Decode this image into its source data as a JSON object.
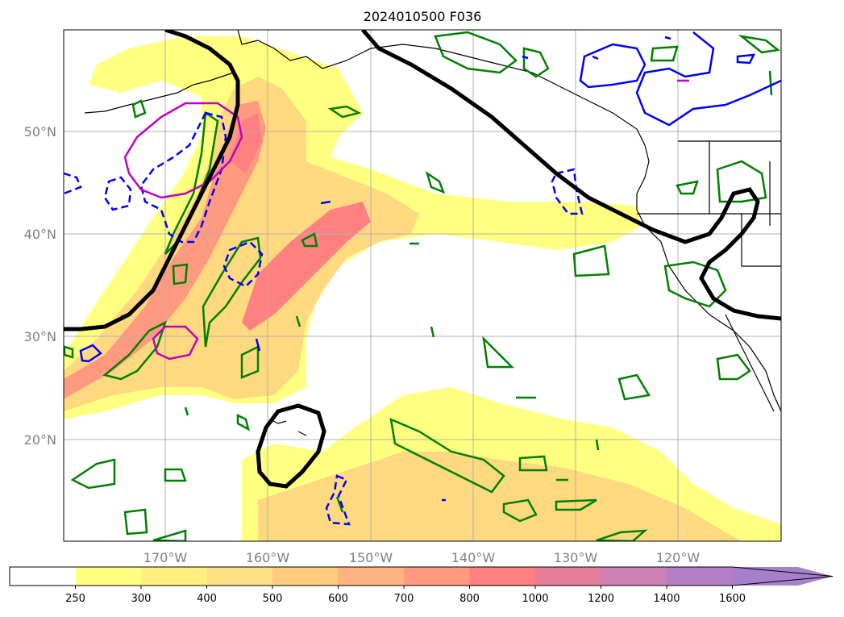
{
  "title": "2024010500 F036",
  "latitude_labels": [
    "50°N",
    "40°N",
    "30°N",
    "20°N"
  ],
  "longitude_labels": [
    "170°W",
    "160°W",
    "150°W",
    "140°W",
    "130°W",
    "120°W"
  ],
  "colorbar": {
    "tick_labels": [
      "250",
      "300",
      "400",
      "500",
      "600",
      "700",
      "800",
      "1000",
      "1200",
      "1400",
      "1600"
    ],
    "colors": [
      "#ffffff",
      "#ffff80",
      "#ffee80",
      "#ffe080",
      "#ffcc80",
      "#ffb380",
      "#ff9980",
      "#ff8080",
      "#e57f99",
      "#cc80b3",
      "#b380c8",
      "#a680cc"
    ],
    "extend": "max"
  },
  "map_colors": {
    "ivt_low": "#ffff80",
    "ivt_mid": "#ffd980",
    "ivt_high": "#ff8080",
    "green_contour": "#008000",
    "blue_contour": "#0000ff",
    "magenta_contour": "#c000c0",
    "black_contour": "#000000"
  }
}
